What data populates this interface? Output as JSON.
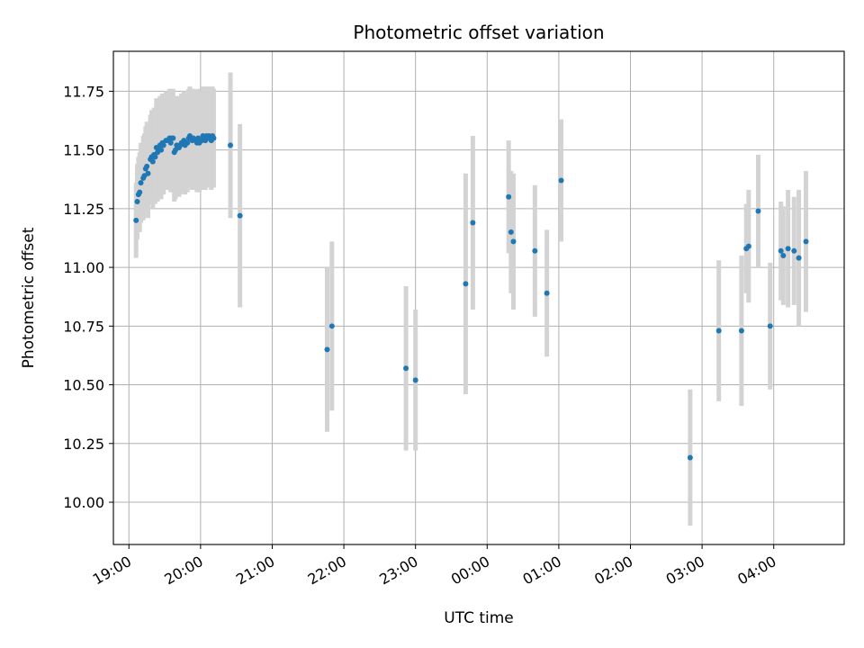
{
  "chart_data": {
    "type": "scatter",
    "title": "Photometric offset variation",
    "xlabel": "UTC time",
    "ylabel": "Photometric offset",
    "grid": true,
    "xlim": [
      "18:47",
      "28:59"
    ],
    "ylim": [
      9.82,
      11.92
    ],
    "x_ticks": [
      "19:00",
      "20:00",
      "21:00",
      "22:00",
      "23:00",
      "00:00",
      "01:00",
      "02:00",
      "03:00",
      "04:00"
    ],
    "y_ticks": [
      "10.00",
      "10.25",
      "10.50",
      "10.75",
      "11.00",
      "11.25",
      "11.50",
      "11.75"
    ],
    "colors": {
      "point": "#1f77b4",
      "errorbar": "#d3d3d3",
      "grid": "#b0b0b0"
    },
    "series": [
      {
        "points": [
          {
            "x": "19:06",
            "y": 11.2,
            "err": 0.16
          },
          {
            "x": "19:07",
            "y": 11.28,
            "err": 0.16
          },
          {
            "x": "19:08",
            "y": 11.31,
            "err": 0.16
          },
          {
            "x": "19:09",
            "y": 11.32,
            "err": 0.17
          },
          {
            "x": "19:10",
            "y": 11.36,
            "err": 0.17
          },
          {
            "x": "19:12",
            "y": 11.38,
            "err": 0.18
          },
          {
            "x": "19:13",
            "y": 11.39,
            "err": 0.18
          },
          {
            "x": "19:14",
            "y": 11.42,
            "err": 0.18
          },
          {
            "x": "19:15",
            "y": 11.43,
            "err": 0.19
          },
          {
            "x": "19:16",
            "y": 11.4,
            "err": 0.19
          },
          {
            "x": "19:18",
            "y": 11.46,
            "err": 0.19
          },
          {
            "x": "19:19",
            "y": 11.47,
            "err": 0.2
          },
          {
            "x": "19:20",
            "y": 11.45,
            "err": 0.2
          },
          {
            "x": "19:21",
            "y": 11.48,
            "err": 0.2
          },
          {
            "x": "19:22",
            "y": 11.47,
            "err": 0.2
          },
          {
            "x": "19:23",
            "y": 11.51,
            "err": 0.21
          },
          {
            "x": "19:24",
            "y": 11.49,
            "err": 0.21
          },
          {
            "x": "19:25",
            "y": 11.51,
            "err": 0.21
          },
          {
            "x": "19:26",
            "y": 11.52,
            "err": 0.21
          },
          {
            "x": "19:27",
            "y": 11.5,
            "err": 0.21
          },
          {
            "x": "19:28",
            "y": 11.53,
            "err": 0.21
          },
          {
            "x": "19:29",
            "y": 11.52,
            "err": 0.21
          },
          {
            "x": "19:31",
            "y": 11.54,
            "err": 0.21
          },
          {
            "x": "19:32",
            "y": 11.54,
            "err": 0.21
          },
          {
            "x": "19:34",
            "y": 11.55,
            "err": 0.21
          },
          {
            "x": "19:35",
            "y": 11.53,
            "err": 0.21
          },
          {
            "x": "19:36",
            "y": 11.55,
            "err": 0.21
          },
          {
            "x": "19:37",
            "y": 11.55,
            "err": 0.21
          },
          {
            "x": "19:38",
            "y": 11.49,
            "err": 0.21
          },
          {
            "x": "19:39",
            "y": 11.5,
            "err": 0.21
          },
          {
            "x": "19:40",
            "y": 11.52,
            "err": 0.21
          },
          {
            "x": "19:42",
            "y": 11.51,
            "err": 0.21
          },
          {
            "x": "19:43",
            "y": 11.52,
            "err": 0.21
          },
          {
            "x": "19:44",
            "y": 11.53,
            "err": 0.21
          },
          {
            "x": "19:45",
            "y": 11.53,
            "err": 0.21
          },
          {
            "x": "19:46",
            "y": 11.54,
            "err": 0.21
          },
          {
            "x": "19:47",
            "y": 11.52,
            "err": 0.21
          },
          {
            "x": "19:49",
            "y": 11.53,
            "err": 0.21
          },
          {
            "x": "19:50",
            "y": 11.55,
            "err": 0.21
          },
          {
            "x": "19:51",
            "y": 11.56,
            "err": 0.21
          },
          {
            "x": "19:52",
            "y": 11.55,
            "err": 0.21
          },
          {
            "x": "19:53",
            "y": 11.54,
            "err": 0.21
          },
          {
            "x": "19:54",
            "y": 11.55,
            "err": 0.21
          },
          {
            "x": "19:56",
            "y": 11.54,
            "err": 0.21
          },
          {
            "x": "19:57",
            "y": 11.53,
            "err": 0.21
          },
          {
            "x": "19:58",
            "y": 11.55,
            "err": 0.21
          },
          {
            "x": "19:59",
            "y": 11.53,
            "err": 0.21
          },
          {
            "x": "20:01",
            "y": 11.54,
            "err": 0.21
          },
          {
            "x": "20:02",
            "y": 11.56,
            "err": 0.21
          },
          {
            "x": "20:03",
            "y": 11.55,
            "err": 0.21
          },
          {
            "x": "20:04",
            "y": 11.54,
            "err": 0.21
          },
          {
            "x": "20:05",
            "y": 11.56,
            "err": 0.21
          },
          {
            "x": "20:06",
            "y": 11.55,
            "err": 0.21
          },
          {
            "x": "20:07",
            "y": 11.56,
            "err": 0.21
          },
          {
            "x": "20:08",
            "y": 11.55,
            "err": 0.21
          },
          {
            "x": "20:09",
            "y": 11.54,
            "err": 0.21
          },
          {
            "x": "20:10",
            "y": 11.56,
            "err": 0.21
          },
          {
            "x": "20:11",
            "y": 11.55,
            "err": 0.21
          },
          {
            "x": "20:25",
            "y": 11.52,
            "err": 0.31
          },
          {
            "x": "20:33",
            "y": 11.22,
            "err": 0.39
          },
          {
            "x": "21:46",
            "y": 10.65,
            "err": 0.35
          },
          {
            "x": "21:50",
            "y": 10.75,
            "err": 0.36
          },
          {
            "x": "22:52",
            "y": 10.57,
            "err": 0.35
          },
          {
            "x": "23:00",
            "y": 10.52,
            "err": 0.3
          },
          {
            "x": "23:42",
            "y": 10.93,
            "err": 0.47
          },
          {
            "x": "23:48",
            "y": 11.19,
            "err": 0.37
          },
          {
            "x": "00:18",
            "y": 11.3,
            "err": 0.24
          },
          {
            "x": "00:20",
            "y": 11.15,
            "err": 0.26
          },
          {
            "x": "00:22",
            "y": 11.11,
            "err": 0.29
          },
          {
            "x": "00:40",
            "y": 11.07,
            "err": 0.28
          },
          {
            "x": "00:50",
            "y": 10.89,
            "err": 0.27
          },
          {
            "x": "01:02",
            "y": 11.37,
            "err": 0.26
          },
          {
            "x": "02:50",
            "y": 10.19,
            "err": 0.29
          },
          {
            "x": "03:14",
            "y": 10.73,
            "err": 0.3
          },
          {
            "x": "03:33",
            "y": 10.73,
            "err": 0.32
          },
          {
            "x": "03:37",
            "y": 11.08,
            "err": 0.19
          },
          {
            "x": "03:39",
            "y": 11.09,
            "err": 0.24
          },
          {
            "x": "03:47",
            "y": 11.24,
            "err": 0.24
          },
          {
            "x": "03:57",
            "y": 10.75,
            "err": 0.27
          },
          {
            "x": "04:06",
            "y": 11.07,
            "err": 0.21
          },
          {
            "x": "04:08",
            "y": 11.05,
            "err": 0.21
          },
          {
            "x": "04:12",
            "y": 11.08,
            "err": 0.25
          },
          {
            "x": "04:17",
            "y": 11.07,
            "err": 0.23
          },
          {
            "x": "04:21",
            "y": 11.04,
            "err": 0.29
          },
          {
            "x": "04:27",
            "y": 11.11,
            "err": 0.3
          }
        ]
      }
    ]
  }
}
